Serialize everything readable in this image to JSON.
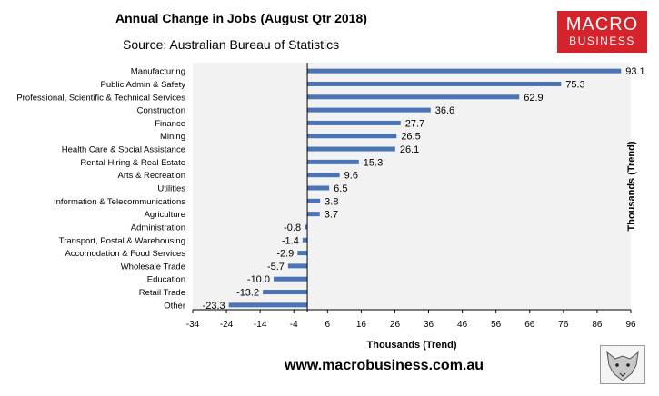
{
  "title": "Annual Change in Jobs (August Qtr 2018)",
  "subtitle": "Source: Australian Bureau of Statistics",
  "logo": {
    "line1": "MACRO",
    "line2": "BUSINESS"
  },
  "website": "www.macrobusiness.com.au",
  "colors": {
    "bar": "#4a74b5",
    "plot_bg": "#f2f2f2",
    "logo_bg": "#d4232a"
  },
  "chart_data": {
    "type": "bar",
    "orientation": "horizontal",
    "categories": [
      "Manufacturing",
      "Public Admin & Safety",
      "Professional, Scientific & Technical Services",
      "Construction",
      "Finance",
      "Mining",
      "Health Care & Social Assistance",
      "Rental Hiring & Real Estate",
      "Arts & Recreation",
      "Utilities",
      "Information & Telecommunications",
      "Agriculture",
      "Administration",
      "Transport, Postal & Warehousing",
      "Accomodation & Food Services",
      "Wholesale Trade",
      "Education",
      "Retail Trade",
      "Other"
    ],
    "values": [
      93.1,
      75.3,
      62.9,
      36.6,
      27.7,
      26.5,
      26.1,
      15.3,
      9.6,
      6.5,
      3.8,
      3.7,
      -0.8,
      -1.4,
      -2.9,
      -5.7,
      -10.0,
      -13.2,
      -23.3
    ],
    "value_labels": [
      "93.1",
      "75.3",
      "62.9",
      "36.6",
      "27.7",
      "26.5",
      "26.1",
      "15.3",
      "9.6",
      "6.5",
      "3.8",
      "3.7",
      "-0.8",
      "-1.4",
      "-2.9",
      "-5.7",
      "-10.0",
      "-13.2",
      "-23.3"
    ],
    "xlim": [
      -34,
      96
    ],
    "xticks": [
      -34,
      -24,
      -14,
      -4,
      6,
      16,
      26,
      36,
      46,
      56,
      66,
      76,
      86,
      96
    ],
    "xlabel": "Thousands (Trend)",
    "ylabel_right": "Thousands (Trend)",
    "grid": false
  }
}
